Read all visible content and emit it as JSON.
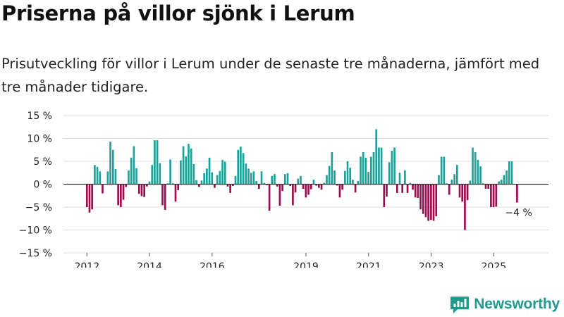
{
  "title": "Priserna på villor sjönk i Lerum",
  "subtitle": "Prisutveckling för villor i Lerum under de senaste tre månaderna, jämfört med tre månader tidigare.",
  "brand": {
    "name": "Newsworthy",
    "icon": "newsworthy-logo-icon"
  },
  "colors": {
    "positive": "#1aa19a",
    "negative": "#9b0d4e",
    "zero_line": "#333333",
    "grid": "#dddddd",
    "text": "#222222",
    "brand": "#229a8e"
  },
  "chart_data": {
    "type": "bar",
    "title": "Priserna på villor sjönk i Lerum",
    "xlabel": "",
    "ylabel": "",
    "ylim": [
      -15,
      15
    ],
    "yticks": [
      15,
      10,
      5,
      0,
      -5,
      -10,
      -15
    ],
    "ytick_labels": [
      "15 %",
      "10 %",
      "5 %",
      "0 %",
      "−5 %",
      "−10 %",
      "−15 %"
    ],
    "x_range": [
      2011.25,
      2026.75
    ],
    "xticks": [
      2012,
      2014,
      2016,
      2019,
      2021,
      2023,
      2025
    ],
    "xtick_labels": [
      "2012",
      "2014",
      "2016",
      "2019",
      "2021",
      "2023",
      "2025"
    ],
    "grid": true,
    "start": 2012,
    "step": 0.0833,
    "values": [
      -5.0,
      -6.2,
      -5.5,
      4.2,
      3.8,
      2.8,
      -2.0,
      0.0,
      2.8,
      9.3,
      7.5,
      3.3,
      -4.6,
      -5.0,
      -3.4,
      -0.6,
      3.0,
      5.8,
      8.3,
      3.5,
      -2.1,
      -2.6,
      -2.8,
      -0.5,
      0.6,
      4.2,
      9.6,
      9.6,
      4.6,
      -4.6,
      -5.6,
      0.2,
      5.4,
      0.2,
      -3.8,
      -1.3,
      5.2,
      8.3,
      6.1,
      8.8,
      7.8,
      4.4,
      0.9,
      -0.6,
      0.8,
      2.4,
      3.4,
      5.8,
      2.6,
      -0.8,
      2.0,
      2.9,
      5.3,
      4.9,
      -0.5,
      -1.9,
      -0.4,
      1.8,
      7.5,
      8.2,
      6.8,
      4.5,
      3.4,
      2.5,
      2.8,
      0.7,
      -1.0,
      2.8,
      0.3,
      -0.2,
      -5.8,
      1.8,
      2.2,
      -0.5,
      -4.7,
      -1.5,
      2.2,
      2.4,
      -0.4,
      -4.6,
      -1.8,
      1.2,
      1.8,
      -1.0,
      -2.9,
      -2.3,
      -1.1,
      1.0,
      -0.3,
      -0.8,
      -1.2,
      0.3,
      2.0,
      4.0,
      7.0,
      3.0,
      -0.3,
      -2.9,
      -1.2,
      2.9,
      5.0,
      3.6,
      1.0,
      -1.8,
      0.7,
      6.0,
      7.0,
      5.8,
      2.7,
      6.0,
      7.0,
      12.0,
      8.0,
      8.0,
      -5.0,
      -2.7,
      4.8,
      7.3,
      8.0,
      -1.9,
      2.5,
      -1.9,
      3.0,
      -1.9,
      0.3,
      -1.2,
      -2.9,
      -3.0,
      -5.5,
      -6.5,
      -7.2,
      -8.0,
      -7.8,
      -8.0,
      -7.0,
      2.0,
      6.0,
      6.0,
      0.2,
      -2.3,
      1.0,
      2.2,
      4.2,
      -2.9,
      -3.8,
      -10.0,
      -3.5,
      0.8,
      8.0,
      7.0,
      5.3,
      3.9,
      0.2,
      -1.0,
      -1.0,
      -5.0,
      -5.0,
      -4.9,
      0.6,
      1.0,
      2.0,
      3.0,
      5.0,
      5.0,
      0.0,
      -4.0
    ],
    "annotation": {
      "text": "−4 %",
      "value": -4.0,
      "period": "latest"
    }
  }
}
